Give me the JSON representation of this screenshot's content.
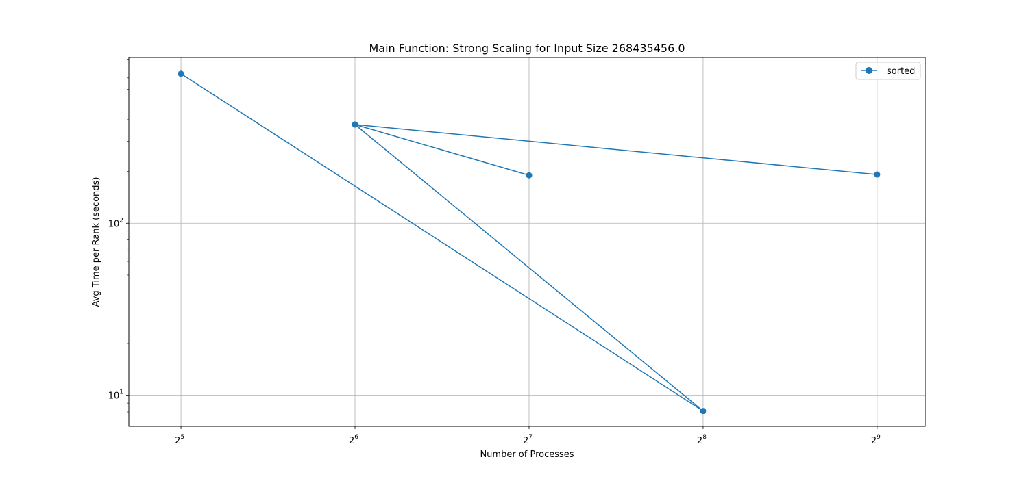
{
  "chart_data": {
    "type": "line",
    "title": "Main Function: Strong Scaling for Input Size 268435456.0",
    "xlabel": "Number of Processes",
    "ylabel": "Avg Time per Rank (seconds)",
    "x_scale": "log2",
    "y_scale": "log10",
    "xlim": [
      26.0,
      620.0
    ],
    "ylim": [
      6.6,
      920.0
    ],
    "x_ticks": [
      {
        "value": 32,
        "base": "2",
        "exp": "5"
      },
      {
        "value": 64,
        "base": "2",
        "exp": "6"
      },
      {
        "value": 128,
        "base": "2",
        "exp": "7"
      },
      {
        "value": 256,
        "base": "2",
        "exp": "8"
      },
      {
        "value": 512,
        "base": "2",
        "exp": "9"
      }
    ],
    "y_ticks": [
      {
        "value": 10,
        "base": "10",
        "exp": "1"
      },
      {
        "value": 100,
        "base": "10",
        "exp": "2"
      }
    ],
    "grid": true,
    "legend_position": "top-right",
    "series": [
      {
        "name": "sorted",
        "color": "#1f77b4",
        "marker": "circle",
        "points": [
          {
            "x": 32,
            "y": 740
          },
          {
            "x": 256,
            "y": 8.1
          },
          {
            "x": 64,
            "y": 375
          },
          {
            "x": 128,
            "y": 190
          },
          {
            "x": 64,
            "y": 375
          },
          {
            "x": 512,
            "y": 192
          }
        ]
      }
    ]
  }
}
